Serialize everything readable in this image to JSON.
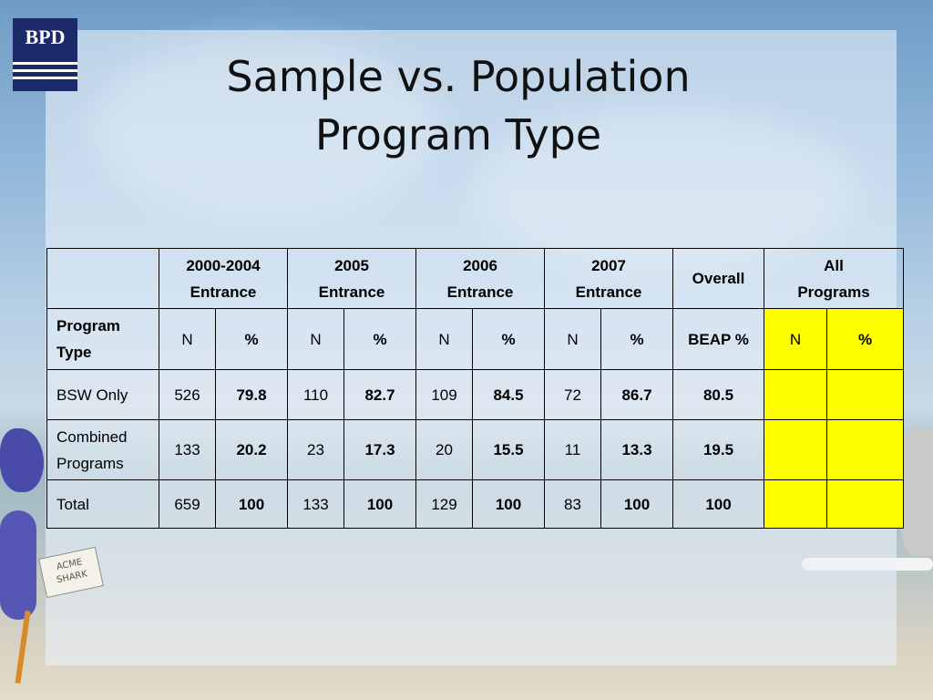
{
  "logo": {
    "text": "BPD"
  },
  "title": {
    "line1": "Sample vs. Population",
    "line2": "Program Type"
  },
  "acme_label": {
    "line1": "ACME",
    "line2": "SHARK"
  },
  "colors": {
    "highlight": "#ffff00",
    "logo": "#1b2a6b"
  },
  "table": {
    "groups": [
      {
        "line1": "2000-2004",
        "line2": "Entrance"
      },
      {
        "line1": "2005",
        "line2": "Entrance"
      },
      {
        "line1": "2006",
        "line2": "Entrance"
      },
      {
        "line1": "2007",
        "line2": "Entrance"
      }
    ],
    "overall_header": "Overall",
    "all_programs": {
      "line1": "All",
      "line2": "Programs"
    },
    "subheader": {
      "label": {
        "line1": "Program",
        "line2": "Type"
      },
      "n": "N",
      "pct": "%",
      "beap": "BEAP %"
    },
    "rows": [
      {
        "label": {
          "line1": "BSW Only",
          "line2": ""
        },
        "cells": [
          "526",
          "79.8",
          "110",
          "82.7",
          "109",
          "84.5",
          "72",
          "86.7"
        ],
        "overall": "80.5",
        "all_n": "",
        "all_pct": ""
      },
      {
        "label": {
          "line1": "Combined",
          "line2": "Programs"
        },
        "cells": [
          "133",
          "20.2",
          "23",
          "17.3",
          "20",
          "15.5",
          "11",
          "13.3"
        ],
        "overall": "19.5",
        "all_n": "",
        "all_pct": ""
      },
      {
        "label": {
          "line1": "Total",
          "line2": ""
        },
        "cells": [
          "659",
          "100",
          "133",
          "100",
          "129",
          "100",
          "83",
          "100"
        ],
        "overall": "100",
        "all_n": "",
        "all_pct": ""
      }
    ]
  }
}
